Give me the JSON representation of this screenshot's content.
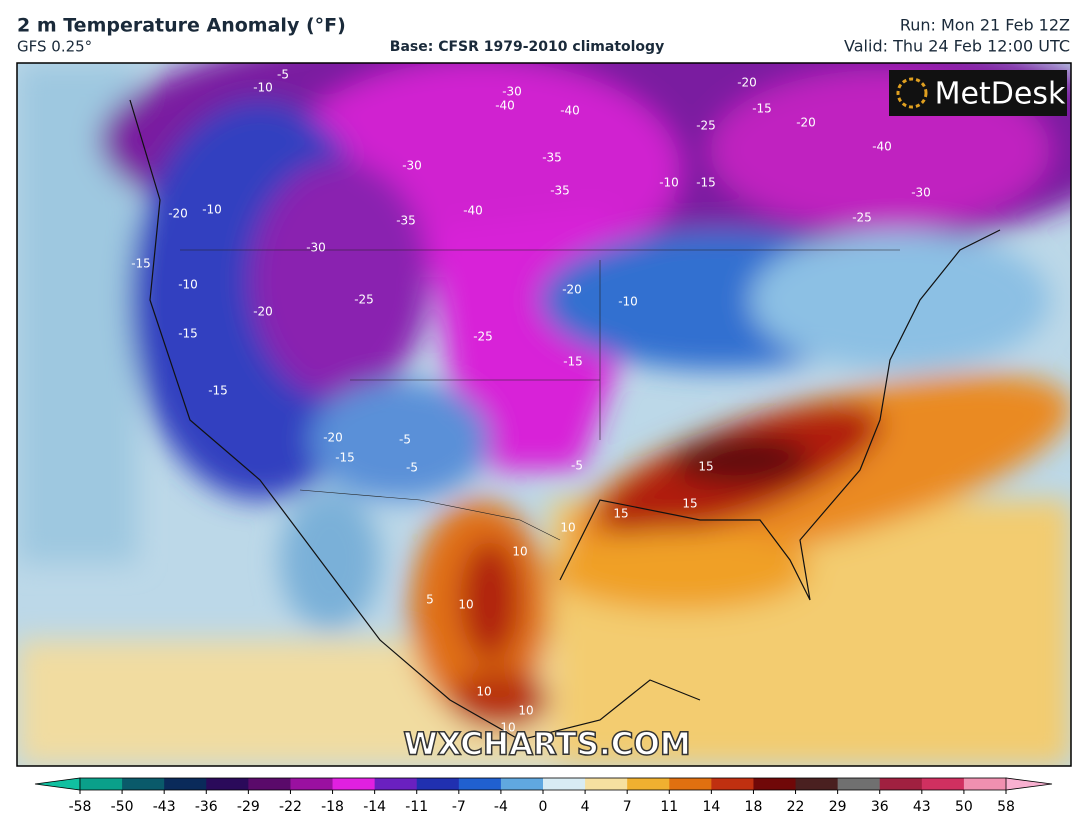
{
  "header": {
    "title": "2 m Temperature Anomaly (°F)",
    "model": "GFS 0.25°",
    "base": "Base: CFSR 1979-2010 climatology",
    "run": "Run: Mon 21 Feb 12Z",
    "valid": "Valid: Thu 24 Feb 12:00 UTC"
  },
  "logo": "MetDesk",
  "watermark": "WXCHARTS.COM",
  "map": {
    "contour_labels": [
      -5,
      -10,
      -30,
      -40,
      -40,
      -20,
      -15,
      -20,
      -25,
      -40,
      -10,
      -15,
      -30,
      -25,
      -35,
      -30,
      -35,
      -40,
      -35,
      -20,
      -10,
      -30,
      -15,
      -10,
      -25,
      -20,
      -20,
      -10,
      -15,
      -25,
      -15,
      -15,
      -20,
      -15,
      -5,
      -5,
      -5,
      15,
      15,
      15,
      10,
      10,
      10,
      5,
      10,
      10,
      10
    ]
  },
  "colorbar": {
    "ticks": [
      -58,
      -50,
      -43,
      -36,
      -29,
      -22,
      -18,
      -14,
      -11,
      -7,
      -4,
      0,
      4,
      7,
      11,
      14,
      18,
      22,
      29,
      36,
      43,
      50,
      58
    ],
    "colors": [
      "#0aa08a",
      "#0a5a6a",
      "#0a2a5a",
      "#2a0a5a",
      "#5a0a6a",
      "#9a10a0",
      "#e020e0",
      "#6a20c0",
      "#2030b0",
      "#2060d0",
      "#60a8e0",
      "#d8ecf4",
      "#f6e0a0",
      "#f0b030",
      "#e07010",
      "#c03010",
      "#700808",
      "#4a2020",
      "#707070",
      "#a02040",
      "#d03060",
      "#f090b0"
    ],
    "low_color": "#10c0a0",
    "high_color": "#f8b0d0"
  }
}
